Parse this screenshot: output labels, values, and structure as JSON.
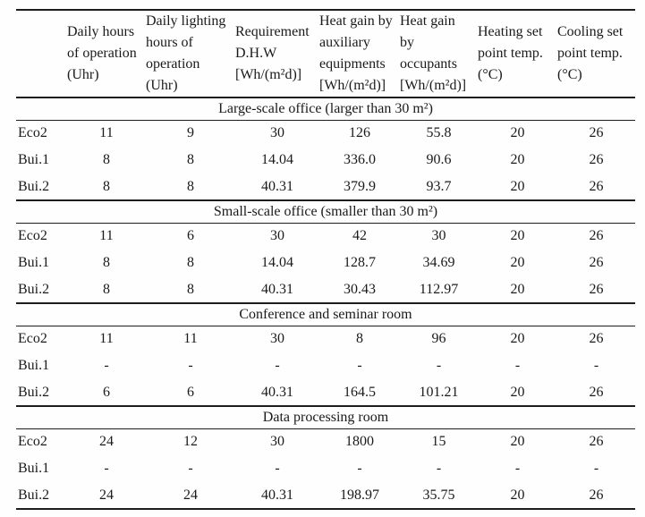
{
  "table": {
    "columns": [
      "",
      "Daily hours of operation (Uhr)",
      "Daily lighting hours of operation (Uhr)",
      "Requirement D.H.W [Wh/(m²d)]",
      "Heat gain by auxiliary equipments [Wh/(m²d)]",
      "Heat gain by occupants [Wh/(m²d)]",
      "Heating set point temp. (°C)",
      "Cooling set point temp. (°C)"
    ],
    "sections": [
      {
        "title": "Large-scale office (larger than 30 m²)",
        "rows": [
          {
            "label": "Eco2",
            "values": [
              "11",
              "9",
              "30",
              "126",
              "55.8",
              "20",
              "26"
            ]
          },
          {
            "label": "Bui.1",
            "values": [
              "8",
              "8",
              "14.04",
              "336.0",
              "90.6",
              "20",
              "26"
            ]
          },
          {
            "label": "Bui.2",
            "values": [
              "8",
              "8",
              "40.31",
              "379.9",
              "93.7",
              "20",
              "26"
            ]
          }
        ]
      },
      {
        "title": "Small-scale office (smaller than 30 m²)",
        "rows": [
          {
            "label": "Eco2",
            "values": [
              "11",
              "6",
              "30",
              "42",
              "30",
              "20",
              "26"
            ]
          },
          {
            "label": "Bui.1",
            "values": [
              "8",
              "8",
              "14.04",
              "128.7",
              "34.69",
              "20",
              "26"
            ]
          },
          {
            "label": "Bui.2",
            "values": [
              "8",
              "8",
              "40.31",
              "30.43",
              "112.97",
              "20",
              "26"
            ]
          }
        ]
      },
      {
        "title": "Conference and seminar room",
        "rows": [
          {
            "label": "Eco2",
            "values": [
              "11",
              "11",
              "30",
              "8",
              "96",
              "20",
              "26"
            ]
          },
          {
            "label": "Bui.1",
            "values": [
              "-",
              "-",
              "-",
              "-",
              "-",
              "-",
              "-"
            ]
          },
          {
            "label": "Bui.2",
            "values": [
              "6",
              "6",
              "40.31",
              "164.5",
              "101.21",
              "20",
              "26"
            ]
          }
        ]
      },
      {
        "title": "Data processing room",
        "rows": [
          {
            "label": "Eco2",
            "values": [
              "24",
              "12",
              "30",
              "1800",
              "15",
              "20",
              "26"
            ]
          },
          {
            "label": "Bui.1",
            "values": [
              "-",
              "-",
              "-",
              "-",
              "-",
              "-",
              "-"
            ]
          },
          {
            "label": "Bui.2",
            "values": [
              "24",
              "24",
              "40.31",
              "198.97",
              "35.75",
              "20",
              "26"
            ]
          }
        ]
      }
    ]
  },
  "colors": {
    "text": "#1a1a1a",
    "rule": "#1d1d1d",
    "background": "#fefefe"
  }
}
